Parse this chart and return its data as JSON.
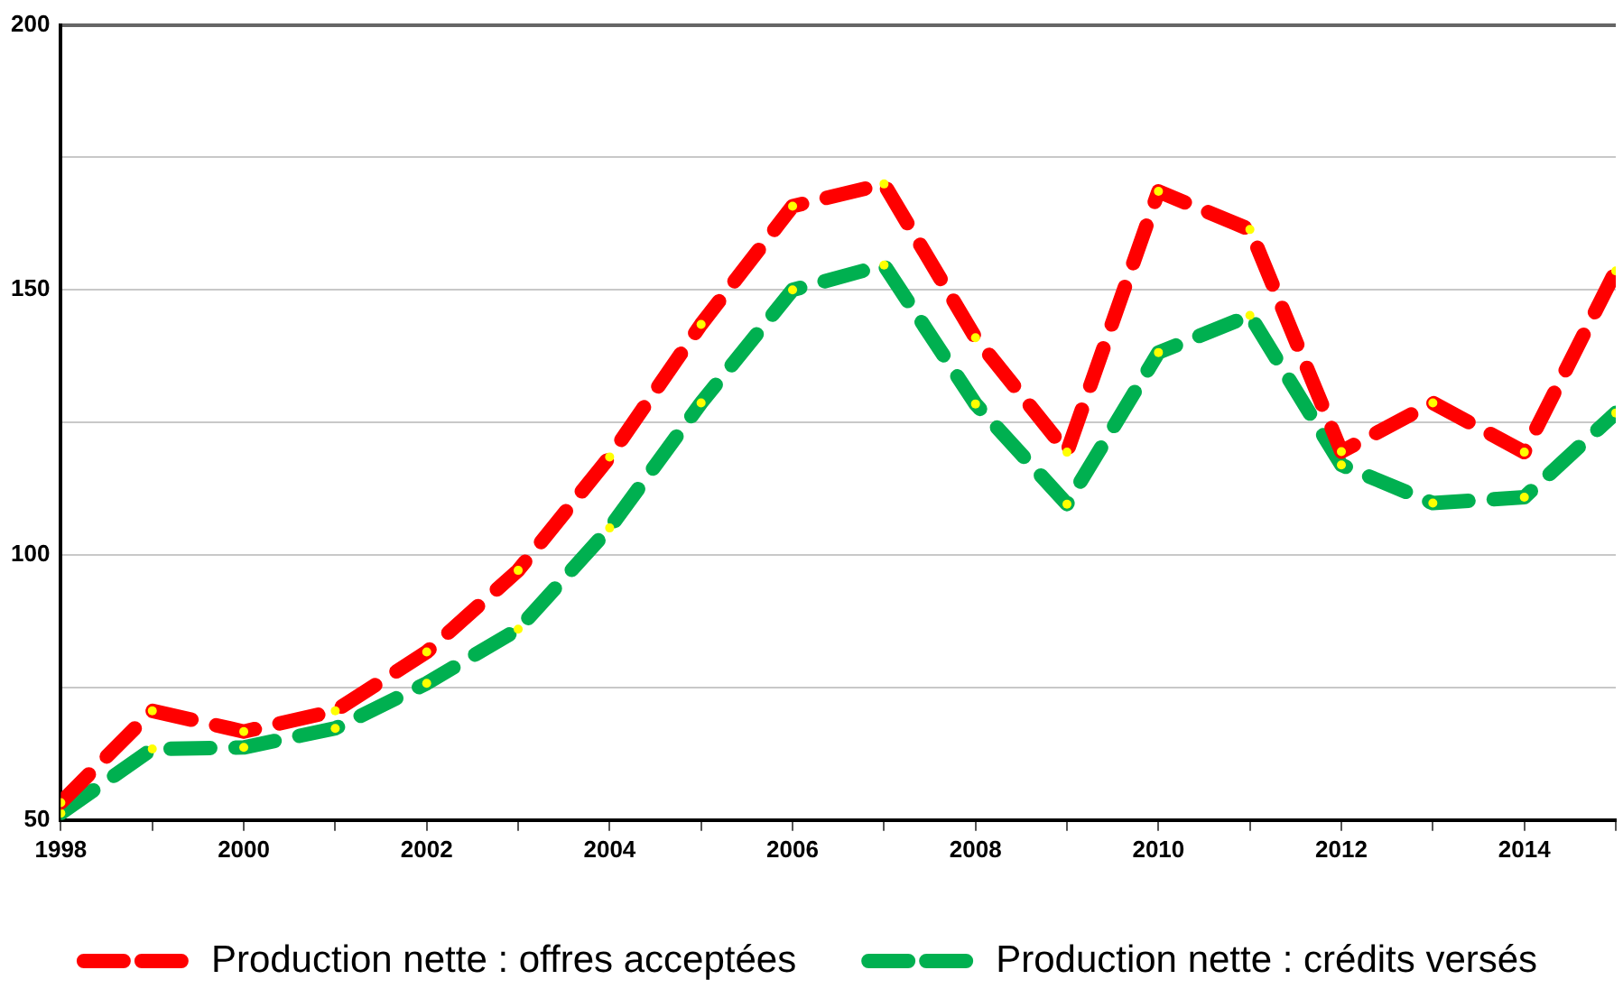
{
  "chart_data": {
    "type": "line",
    "x": [
      1998,
      1999,
      2000,
      2001,
      2002,
      2003,
      2004,
      2005,
      2006,
      2007,
      2008,
      2009,
      2010,
      2011,
      2012,
      2013,
      2014,
      2015
    ],
    "series": [
      {
        "name": "Production nette : offres acceptées",
        "color": "#ff0000",
        "values": [
          53.3,
          70.6,
          66.7,
          70.6,
          81.7,
          97.1,
          118.5,
          143.5,
          165.8,
          170,
          141,
          119.4,
          168.6,
          161.4,
          119.5,
          128.7,
          119.4,
          153.6
        ]
      },
      {
        "name": "Production nette : crédits versés",
        "color": "#00b050",
        "values": [
          51.3,
          63.4,
          63.7,
          67.3,
          75.8,
          86,
          105.1,
          128.7,
          150,
          154.7,
          128.5,
          109.6,
          138.2,
          145.2,
          117,
          109.8,
          110.9,
          126.8
        ]
      }
    ],
    "xlim": [
      1998,
      2015
    ],
    "xticks": [
      1998,
      {
        "value": 1999,
        "label": null
      },
      2000,
      {
        "value": 2001,
        "label": null
      },
      2002,
      {
        "value": 2003,
        "label": null
      },
      2004,
      {
        "value": 2005,
        "label": null
      },
      2006,
      {
        "value": 2007,
        "label": null
      },
      2008,
      {
        "value": 2009,
        "label": null
      },
      2010,
      {
        "value": 2011,
        "label": null
      },
      2012,
      {
        "value": 2013,
        "label": null
      },
      2014,
      {
        "value": 2015,
        "label": null
      }
    ],
    "ylim": [
      50,
      200
    ],
    "yticks": [
      50,
      {
        "value": 75,
        "label": null
      },
      100,
      {
        "value": 125,
        "label": null
      },
      150,
      {
        "value": 175,
        "label": null
      },
      200
    ],
    "grid": "y",
    "legend": "bottom",
    "marker": "circle",
    "line_style": "dashed"
  }
}
